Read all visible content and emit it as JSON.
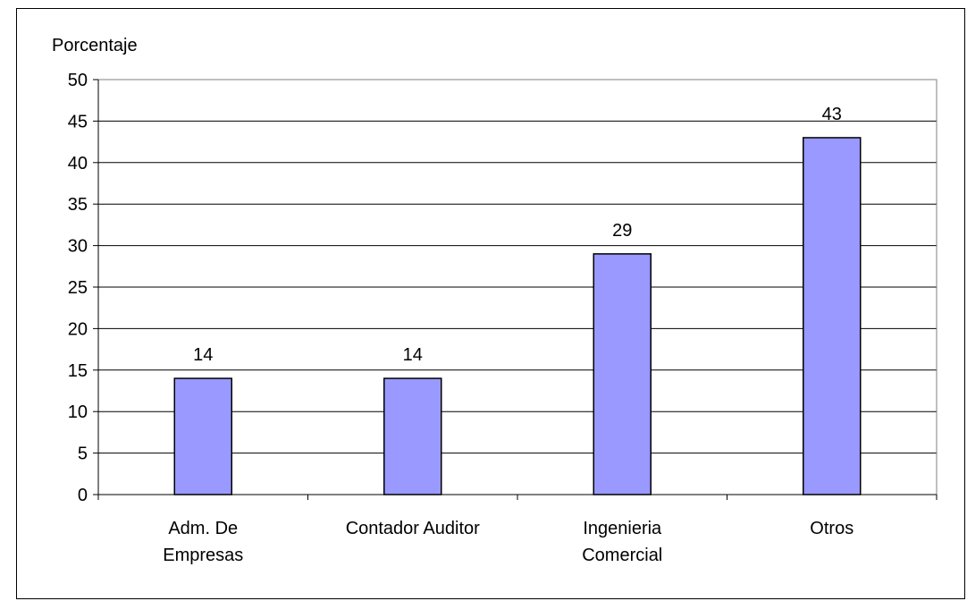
{
  "chart_data": {
    "type": "bar",
    "ylabel": "Porcentaje",
    "categories": [
      [
        "Adm. De",
        "Empresas"
      ],
      [
        "Contador Auditor"
      ],
      [
        "Ingenieria",
        "Comercial"
      ],
      [
        "Otros"
      ]
    ],
    "values": [
      14,
      14,
      29,
      43
    ],
    "data_labels": [
      "14",
      "14",
      "29",
      "43"
    ],
    "ylim": [
      0,
      50
    ],
    "yticks": [
      0,
      5,
      10,
      15,
      20,
      25,
      30,
      35,
      40,
      45,
      50
    ],
    "grid": true,
    "legend": "none",
    "colors": {
      "bar_fill": "#9999FF",
      "bar_stroke": "#000000",
      "gridline": "#000000",
      "plot_border": "#808080",
      "axis": "#000000",
      "background": "#FFFFFF"
    }
  }
}
